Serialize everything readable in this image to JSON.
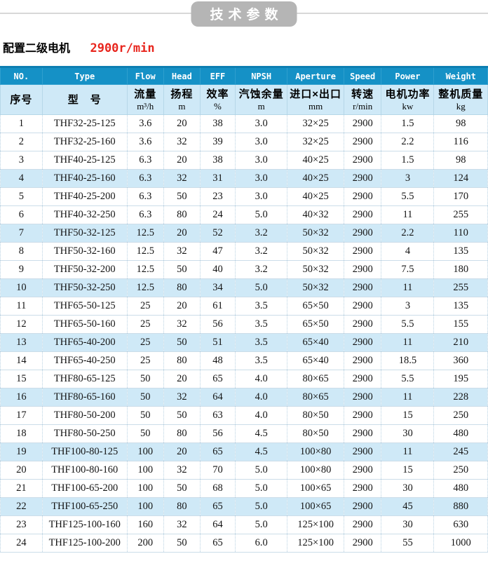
{
  "page": {
    "ribbon_title": "技术参数",
    "subtitle": {
      "label": "配置二级电机",
      "value": "2900r/min"
    }
  },
  "colors": {
    "header_blue": "#1591c6",
    "header_blue_dark": "#0d7fb2",
    "light_blue": "#cfe9f7",
    "ribbon_gray": "#b5b5b5",
    "accent_red": "#e8251d"
  },
  "table": {
    "columns": [
      {
        "key": "no",
        "en": "NO.",
        "cn": "序号",
        "unit": ""
      },
      {
        "key": "type",
        "en": "Type",
        "cn": "型　号",
        "unit": ""
      },
      {
        "key": "flow",
        "en": "Flow",
        "cn": "流量",
        "unit": "m³/h"
      },
      {
        "key": "head",
        "en": "Head",
        "cn": "扬程",
        "unit": "m"
      },
      {
        "key": "eff",
        "en": "EFF",
        "cn": "效率",
        "unit": "%"
      },
      {
        "key": "npsh",
        "en": "NPSH",
        "cn": "汽蚀余量",
        "unit": "m"
      },
      {
        "key": "aperture",
        "en": "Aperture",
        "cn": "进口×出口",
        "unit": "mm"
      },
      {
        "key": "speed",
        "en": "Speed",
        "cn": "转速",
        "unit": "r/min"
      },
      {
        "key": "power",
        "en": "Power",
        "cn": "电机功率",
        "unit": "kw"
      },
      {
        "key": "weight",
        "en": "Weight",
        "cn": "整机质量",
        "unit": "kg"
      }
    ],
    "highlighted_rows": [
      4,
      7,
      10,
      13,
      16,
      19,
      22
    ],
    "rows": [
      [
        "1",
        "THF32-25-125",
        "3.6",
        "20",
        "38",
        "3.0",
        "32×25",
        "2900",
        "1.5",
        "98"
      ],
      [
        "2",
        "THF32-25-160",
        "3.6",
        "32",
        "39",
        "3.0",
        "32×25",
        "2900",
        "2.2",
        "116"
      ],
      [
        "3",
        "THF40-25-125",
        "6.3",
        "20",
        "38",
        "3.0",
        "40×25",
        "2900",
        "1.5",
        "98"
      ],
      [
        "4",
        "THF40-25-160",
        "6.3",
        "32",
        "31",
        "3.0",
        "40×25",
        "2900",
        "3",
        "124"
      ],
      [
        "5",
        "THF40-25-200",
        "6.3",
        "50",
        "23",
        "3.0",
        "40×25",
        "2900",
        "5.5",
        "170"
      ],
      [
        "6",
        "THF40-32-250",
        "6.3",
        "80",
        "24",
        "5.0",
        "40×32",
        "2900",
        "11",
        "255"
      ],
      [
        "7",
        "THF50-32-125",
        "12.5",
        "20",
        "52",
        "3.2",
        "50×32",
        "2900",
        "2.2",
        "110"
      ],
      [
        "8",
        "THF50-32-160",
        "12.5",
        "32",
        "47",
        "3.2",
        "50×32",
        "2900",
        "4",
        "135"
      ],
      [
        "9",
        "THF50-32-200",
        "12.5",
        "50",
        "40",
        "3.2",
        "50×32",
        "2900",
        "7.5",
        "180"
      ],
      [
        "10",
        "THF50-32-250",
        "12.5",
        "80",
        "34",
        "5.0",
        "50×32",
        "2900",
        "11",
        "255"
      ],
      [
        "11",
        "THF65-50-125",
        "25",
        "20",
        "61",
        "3.5",
        "65×50",
        "2900",
        "3",
        "135"
      ],
      [
        "12",
        "THF65-50-160",
        "25",
        "32",
        "56",
        "3.5",
        "65×50",
        "2900",
        "5.5",
        "155"
      ],
      [
        "13",
        "THF65-40-200",
        "25",
        "50",
        "51",
        "3.5",
        "65×40",
        "2900",
        "11",
        "210"
      ],
      [
        "14",
        "THF65-40-250",
        "25",
        "80",
        "48",
        "3.5",
        "65×40",
        "2900",
        "18.5",
        "360"
      ],
      [
        "15",
        "THF80-65-125",
        "50",
        "20",
        "65",
        "4.0",
        "80×65",
        "2900",
        "5.5",
        "195"
      ],
      [
        "16",
        "THF80-65-160",
        "50",
        "32",
        "64",
        "4.0",
        "80×65",
        "2900",
        "11",
        "228"
      ],
      [
        "17",
        "THF80-50-200",
        "50",
        "50",
        "63",
        "4.0",
        "80×50",
        "2900",
        "15",
        "250"
      ],
      [
        "18",
        "THF80-50-250",
        "50",
        "80",
        "56",
        "4.5",
        "80×50",
        "2900",
        "30",
        "480"
      ],
      [
        "19",
        "THF100-80-125",
        "100",
        "20",
        "65",
        "4.5",
        "100×80",
        "2900",
        "11",
        "245"
      ],
      [
        "20",
        "THF100-80-160",
        "100",
        "32",
        "70",
        "5.0",
        "100×80",
        "2900",
        "15",
        "250"
      ],
      [
        "21",
        "THF100-65-200",
        "100",
        "50",
        "68",
        "5.0",
        "100×65",
        "2900",
        "30",
        "480"
      ],
      [
        "22",
        "THF100-65-250",
        "100",
        "80",
        "65",
        "5.0",
        "100×65",
        "2900",
        "45",
        "880"
      ],
      [
        "23",
        "THF125-100-160",
        "160",
        "32",
        "64",
        "5.0",
        "125×100",
        "2900",
        "30",
        "630"
      ],
      [
        "24",
        "THF125-100-200",
        "200",
        "50",
        "65",
        "6.0",
        "125×100",
        "2900",
        "55",
        "1000"
      ]
    ]
  }
}
